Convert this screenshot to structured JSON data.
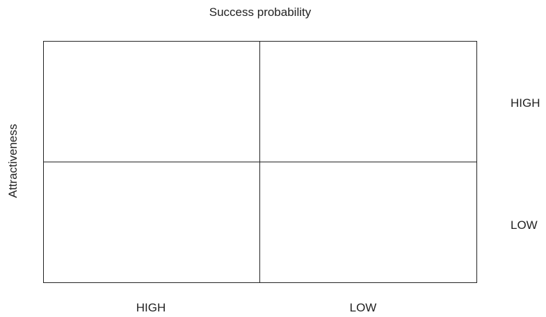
{
  "diagram": {
    "top_label": "Success probability",
    "y_axis_label": "Attractiveness",
    "row_labels": [
      "HIGH",
      "LOW"
    ],
    "column_labels": [
      "HIGH",
      "LOW"
    ],
    "line_color": "#222222"
  }
}
